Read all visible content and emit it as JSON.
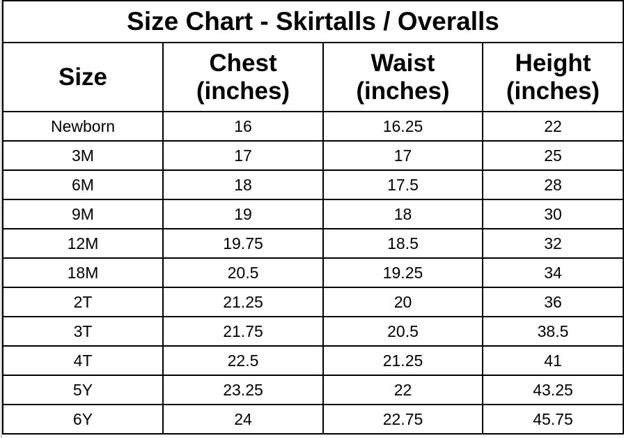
{
  "title": "Size Chart - Skirtalls / Overalls",
  "headers": {
    "size": "Size",
    "chest": [
      "Chest",
      "(inches)"
    ],
    "waist": [
      "Waist",
      "(inches)"
    ],
    "height": [
      "Height",
      "(inches)"
    ]
  },
  "rows": [
    {
      "size": "Newborn",
      "chest": "16",
      "waist": "16.25",
      "height": "22"
    },
    {
      "size": "3M",
      "chest": "17",
      "waist": "17",
      "height": "25"
    },
    {
      "size": "6M",
      "chest": "18",
      "waist": "17.5",
      "height": "28"
    },
    {
      "size": "9M",
      "chest": "19",
      "waist": "18",
      "height": "30"
    },
    {
      "size": "12M",
      "chest": "19.75",
      "waist": "18.5",
      "height": "32"
    },
    {
      "size": "18M",
      "chest": "20.5",
      "waist": "19.25",
      "height": "34"
    },
    {
      "size": "2T",
      "chest": "21.25",
      "waist": "20",
      "height": "36"
    },
    {
      "size": "3T",
      "chest": "21.75",
      "waist": "20.5",
      "height": "38.5"
    },
    {
      "size": "4T",
      "chest": "22.5",
      "waist": "21.25",
      "height": "41"
    },
    {
      "size": "5Y",
      "chest": "23.25",
      "waist": "22",
      "height": "43.25"
    },
    {
      "size": "6Y",
      "chest": "24",
      "waist": "22.75",
      "height": "45.75"
    }
  ]
}
